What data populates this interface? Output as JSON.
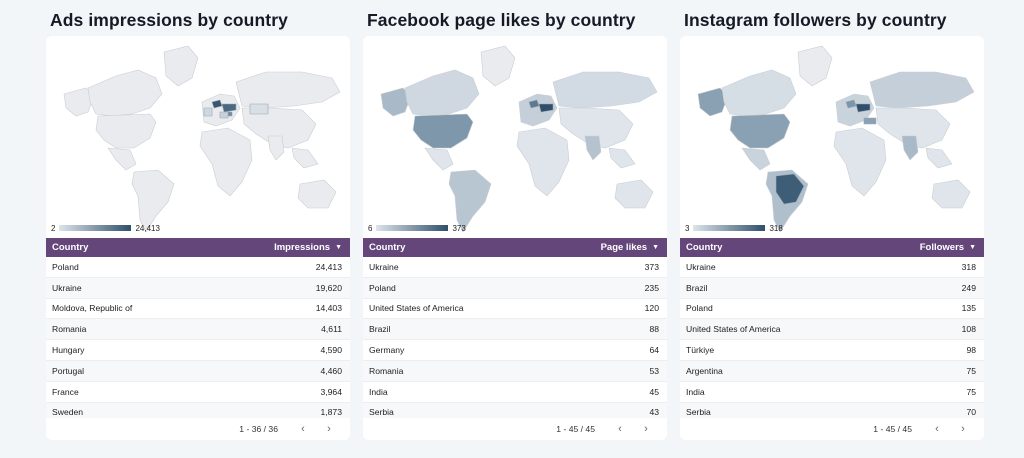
{
  "colors": {
    "header_bg": "#65467a",
    "land_base": "#e8eaed",
    "scale_low": "#dde4ea",
    "scale_high": "#2f4f6b",
    "card_bg": "#ffffff",
    "page_bg": "#f3f6f8"
  },
  "panels": [
    {
      "title": "Ads impressions by country",
      "legend": {
        "min": "2",
        "max": "24,413"
      },
      "columns": {
        "left": "Country",
        "right": "Impressions"
      },
      "rows": [
        {
          "country": "Poland",
          "value": "24,413"
        },
        {
          "country": "Ukraine",
          "value": "19,620"
        },
        {
          "country": "Moldova, Republic of",
          "value": "14,403"
        },
        {
          "country": "Romania",
          "value": "4,611"
        },
        {
          "country": "Hungary",
          "value": "4,590"
        },
        {
          "country": "Portugal",
          "value": "4,460"
        },
        {
          "country": "France",
          "value": "3,964"
        },
        {
          "country": "Sweden",
          "value": "1,873"
        }
      ],
      "pagination": "1 - 36 / 36"
    },
    {
      "title": "Facebook page likes by country",
      "legend": {
        "min": "6",
        "max": "373"
      },
      "columns": {
        "left": "Country",
        "right": "Page likes"
      },
      "rows": [
        {
          "country": "Ukraine",
          "value": "373"
        },
        {
          "country": "Poland",
          "value": "235"
        },
        {
          "country": "United States of America",
          "value": "120"
        },
        {
          "country": "Brazil",
          "value": "88"
        },
        {
          "country": "Germany",
          "value": "64"
        },
        {
          "country": "Romania",
          "value": "53"
        },
        {
          "country": "India",
          "value": "45"
        },
        {
          "country": "Serbia",
          "value": "43"
        }
      ],
      "pagination": "1 - 45 / 45"
    },
    {
      "title": "Instagram followers by country",
      "legend": {
        "min": "3",
        "max": "318"
      },
      "columns": {
        "left": "Country",
        "right": "Followers"
      },
      "rows": [
        {
          "country": "Ukraine",
          "value": "318"
        },
        {
          "country": "Brazil",
          "value": "249"
        },
        {
          "country": "Poland",
          "value": "135"
        },
        {
          "country": "United States of America",
          "value": "108"
        },
        {
          "country": "Türkiye",
          "value": "98"
        },
        {
          "country": "Argentina",
          "value": "75"
        },
        {
          "country": "India",
          "value": "75"
        },
        {
          "country": "Serbia",
          "value": "70"
        }
      ],
      "pagination": "1 - 45 / 45"
    }
  ],
  "icons": {
    "sort": "sort-down-icon",
    "prev": "chevron-left-icon",
    "next": "chevron-right-icon"
  }
}
